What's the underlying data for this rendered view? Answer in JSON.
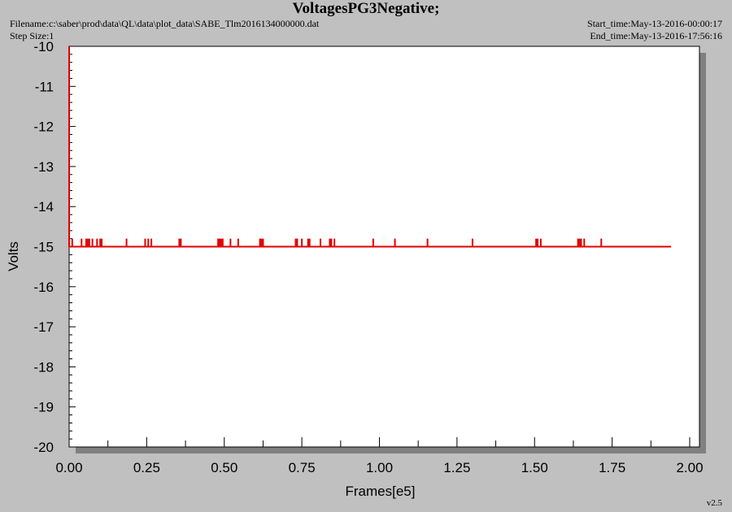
{
  "header": {
    "filename": "Filename:c:\\saber\\prod\\data\\QL\\data\\plot_data\\SABE_Tlm2016134000000.dat",
    "step_size": "Step Size:1",
    "start_time": "Start_time:May-13-2016-00:00:17",
    "end_time": "End_time:May-13-2016-17:56:16"
  },
  "footer": {
    "version": "v2.5"
  },
  "colors": {
    "series": "#e00000",
    "background": "#c0c0c0",
    "plot_area": "#ffffff",
    "shadow": "#808080"
  },
  "chart_data": {
    "type": "line",
    "title": "VoltagesPG3Negative;",
    "xlabel": "Frames[e5]",
    "ylabel": "Volts",
    "xlim": [
      0.0,
      2.0
    ],
    "ylim": [
      -20,
      -10
    ],
    "x_ticks": [
      "0.00",
      "0.25",
      "0.50",
      "0.75",
      "1.00",
      "1.25",
      "1.50",
      "1.75",
      "2.00"
    ],
    "y_ticks": [
      "-10",
      "-11",
      "-12",
      "-13",
      "-14",
      "-15",
      "-16",
      "-17",
      "-18",
      "-19",
      "-20"
    ],
    "grid": false,
    "series": [
      {
        "baseline_value": -15.0,
        "x_range": [
          0.0,
          1.94
        ],
        "initial_spike": {
          "x": 0.0,
          "from": -15.0,
          "to": -10.0
        },
        "spikes_to": -14.8,
        "spike_x": [
          0.01,
          0.04,
          0.055,
          0.06,
          0.065,
          0.075,
          0.09,
          0.1,
          0.105,
          0.185,
          0.245,
          0.255,
          0.265,
          0.355,
          0.36,
          0.48,
          0.485,
          0.49,
          0.495,
          0.52,
          0.545,
          0.615,
          0.62,
          0.625,
          0.73,
          0.735,
          0.75,
          0.77,
          0.775,
          0.81,
          0.84,
          0.845,
          0.855,
          0.98,
          1.05,
          1.155,
          1.3,
          1.505,
          1.51,
          1.52,
          1.64,
          1.645,
          1.65,
          1.66,
          1.715
        ]
      }
    ]
  }
}
